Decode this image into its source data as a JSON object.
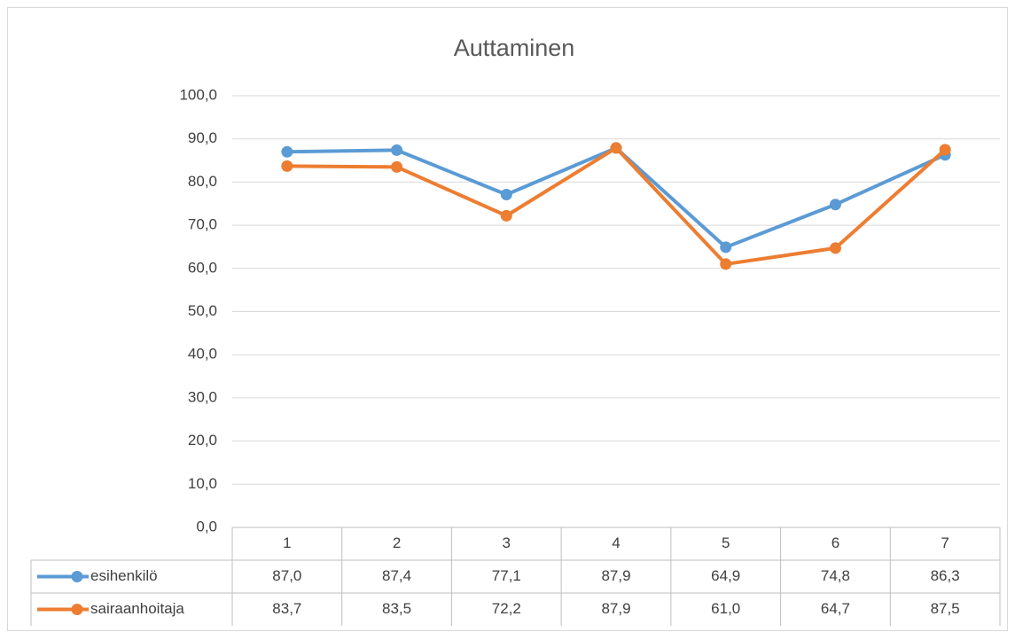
{
  "chart_data": {
    "type": "line",
    "title": "Auttaminen",
    "categories": [
      "1",
      "2",
      "3",
      "4",
      "5",
      "6",
      "7"
    ],
    "series": [
      {
        "name": "esihenkilö",
        "color": "#5b9bd5",
        "values": [
          87.0,
          87.4,
          77.1,
          87.9,
          64.9,
          74.8,
          86.3
        ],
        "value_labels": [
          "87,0",
          "87,4",
          "77,1",
          "87,9",
          "64,9",
          "74,8",
          "86,3"
        ]
      },
      {
        "name": "sairaanhoitaja",
        "color": "#ed7d31",
        "values": [
          83.7,
          83.5,
          72.2,
          87.9,
          61.0,
          64.7,
          87.5
        ],
        "value_labels": [
          "83,7",
          "83,5",
          "72,2",
          "87,9",
          "61,0",
          "64,7",
          "87,5"
        ]
      }
    ],
    "ylim": [
      0,
      100
    ],
    "yticks": [
      {
        "value": 0,
        "label": "0,0"
      },
      {
        "value": 10,
        "label": "10,0"
      },
      {
        "value": 20,
        "label": "20,0"
      },
      {
        "value": 30,
        "label": "30,0"
      },
      {
        "value": 40,
        "label": "40,0"
      },
      {
        "value": 50,
        "label": "50,0"
      },
      {
        "value": 60,
        "label": "60,0"
      },
      {
        "value": 70,
        "label": "70,0"
      },
      {
        "value": 80,
        "label": "80,0"
      },
      {
        "value": 90,
        "label": "90,0"
      },
      {
        "value": 100,
        "label": "100,0"
      }
    ],
    "grid": true,
    "data_table": true
  }
}
